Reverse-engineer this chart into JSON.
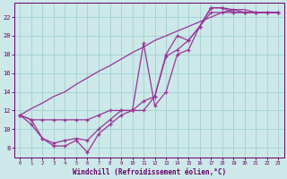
{
  "background_color": "#cce8e8",
  "line_color": "#993399",
  "grid_color": "#99cccc",
  "xlabel": "Windchill (Refroidissement éolien,°C)",
  "tick_color": "#660066",
  "spine_color": "#660066",
  "xlim": [
    -0.5,
    23.5
  ],
  "ylim": [
    7.0,
    23.5
  ],
  "yticks": [
    8,
    10,
    12,
    14,
    16,
    18,
    20,
    22
  ],
  "xticks": [
    0,
    1,
    2,
    3,
    4,
    5,
    6,
    7,
    8,
    9,
    10,
    11,
    12,
    13,
    14,
    15,
    16,
    17,
    18,
    19,
    20,
    21,
    22,
    23
  ],
  "series": [
    [
      11.5,
      11.0,
      9.0,
      8.2,
      8.2,
      8.8,
      7.5,
      9.5,
      10.5,
      11.5,
      12.0,
      19.2,
      12.5,
      14.0,
      18.0,
      18.5,
      21.0,
      23.0,
      23.0,
      22.8,
      22.5,
      22.5,
      22.5,
      22.5
    ],
    [
      11.5,
      11.0,
      11.0,
      11.0,
      11.0,
      11.0,
      11.0,
      11.5,
      12.0,
      12.0,
      12.0,
      12.0,
      13.5,
      18.0,
      20.0,
      19.5,
      21.0,
      22.5,
      22.5,
      22.5,
      22.5,
      22.5,
      22.5,
      22.5
    ],
    [
      11.5,
      10.5,
      9.0,
      8.5,
      8.8,
      9.0,
      8.8,
      10.0,
      11.0,
      12.0,
      12.0,
      13.0,
      13.5,
      17.8,
      18.5,
      19.5,
      21.0,
      23.0,
      23.0,
      22.5,
      22.5,
      22.5,
      22.5,
      22.5
    ]
  ],
  "line2_series": [
    11.5,
    12.2,
    12.8,
    13.5,
    14.0,
    14.8,
    15.5,
    16.2,
    16.8,
    17.5,
    18.2,
    18.8,
    19.5,
    20.0,
    20.5,
    21.0,
    21.5,
    22.0,
    22.5,
    22.8,
    22.8,
    22.5,
    22.5,
    22.5
  ]
}
